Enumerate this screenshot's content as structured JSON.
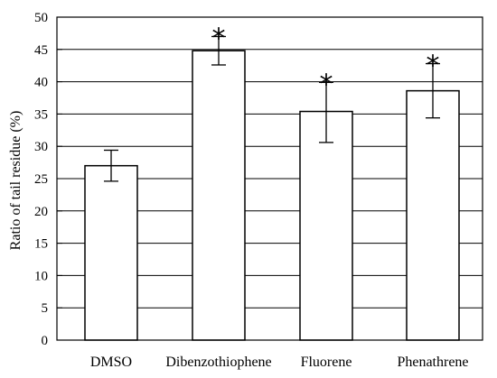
{
  "chart_data": {
    "type": "bar",
    "title": "",
    "xlabel": "",
    "ylabel": "Ratio of tail residue (%)",
    "ylim": [
      0,
      50
    ],
    "yticks": [
      0,
      5,
      10,
      15,
      20,
      25,
      30,
      35,
      40,
      45,
      50
    ],
    "grid": true,
    "categories": [
      "DMSO",
      "Dibenzothiophene",
      "Fluorene",
      "Phenathrene"
    ],
    "values": [
      27.0,
      44.8,
      35.4,
      38.6
    ],
    "error_low": [
      24.6,
      42.6,
      30.6,
      34.4
    ],
    "error_high": [
      29.4,
      47.0,
      39.9,
      42.8
    ],
    "significance": [
      "",
      "*",
      "*",
      "*"
    ],
    "colors": {
      "bar_fill": "#ffffff",
      "bar_stroke": "#000000",
      "grid": "#000000"
    }
  }
}
